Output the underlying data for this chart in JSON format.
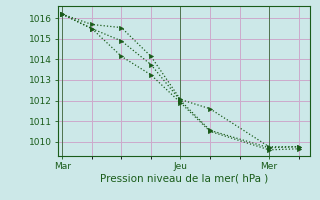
{
  "title": "Pression niveau de la mer( hPa )",
  "bg_color": "#cce8e8",
  "grid_color": "#ccaacc",
  "line_color": "#1a5c1a",
  "xtick_labels": [
    "Mar",
    "Jeu",
    "Mer"
  ],
  "xtick_positions": [
    0.0,
    0.5,
    0.875
  ],
  "ylim": [
    1009.3,
    1016.6
  ],
  "xlim": [
    -0.02,
    1.05
  ],
  "yticks": [
    1010,
    1011,
    1012,
    1013,
    1014,
    1015,
    1016
  ],
  "minor_xticks": [
    0.0,
    0.125,
    0.25,
    0.375,
    0.5,
    0.625,
    0.75,
    0.875,
    1.0
  ],
  "line1_x": [
    0.0,
    0.125,
    0.25,
    0.375,
    0.5,
    0.625,
    0.875,
    1.0
  ],
  "line1_y": [
    1016.2,
    1015.7,
    1015.55,
    1014.15,
    1012.05,
    1011.6,
    1009.75,
    1009.75
  ],
  "line2_x": [
    0.0,
    0.125,
    0.25,
    0.375,
    0.5,
    0.625,
    0.875,
    1.0
  ],
  "line2_y": [
    1016.2,
    1015.5,
    1014.9,
    1013.75,
    1012.0,
    1010.55,
    1009.7,
    1009.75
  ],
  "line3_x": [
    0.0,
    0.125,
    0.25,
    0.375,
    0.5,
    0.625,
    0.875,
    1.0
  ],
  "line3_y": [
    1016.2,
    1015.5,
    1014.15,
    1013.25,
    1011.9,
    1010.5,
    1009.6,
    1009.65
  ]
}
